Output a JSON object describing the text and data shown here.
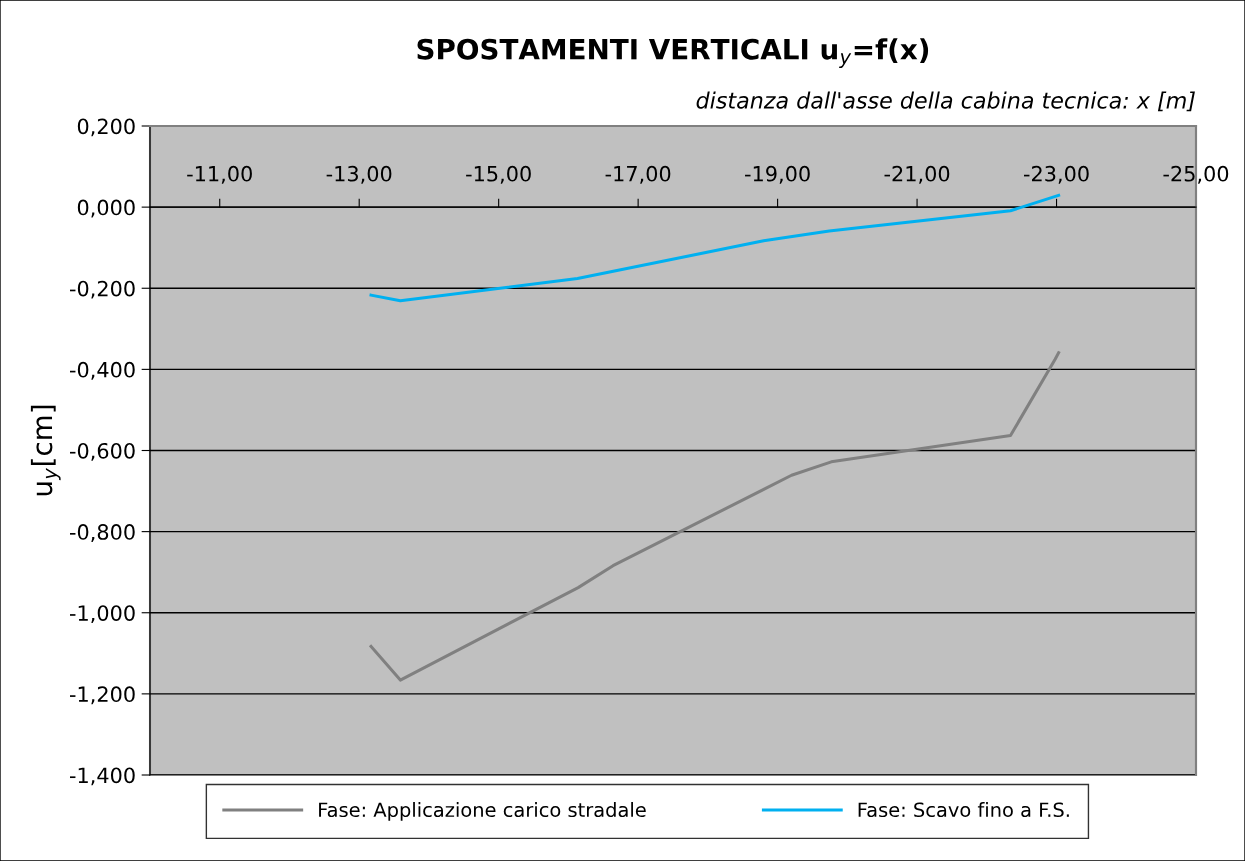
{
  "chart_data": {
    "type": "line",
    "title": "SPOSTAMENTI VERTICALI u$_{y}$=f(x)",
    "xlabel": "distanza dall'asse della cabina tecnica: x [m]",
    "ylabel": "u$_{y}$[cm]",
    "xlim": [
      -10,
      -25
    ],
    "xticks": [
      {
        "value": -11,
        "label": "-11,00"
      },
      {
        "value": -13,
        "label": "-13,00"
      },
      {
        "value": -15,
        "label": "-15,00"
      },
      {
        "value": -17,
        "label": "-17,00"
      },
      {
        "value": -19,
        "label": "-19,00"
      },
      {
        "value": -21,
        "label": "-21,00"
      },
      {
        "value": -23,
        "label": "-23,00"
      },
      {
        "value": -25,
        "label": "-25,00"
      }
    ],
    "ylim": [
      -1.4,
      0.2
    ],
    "yticks": [
      {
        "value": -1.4,
        "label": "-1,400"
      },
      {
        "value": -1.2,
        "label": "-1,200"
      },
      {
        "value": -1.0,
        "label": "-1,000"
      },
      {
        "value": -0.8,
        "label": "-0,800"
      },
      {
        "value": -0.6,
        "label": "-0,600"
      },
      {
        "value": -0.4,
        "label": "-0,400"
      },
      {
        "value": -0.2,
        "label": "-0,200"
      },
      {
        "value": 0,
        "label": "0,000"
      },
      {
        "value": 0.2,
        "label": "0,200"
      }
    ],
    "grid": "y",
    "legend": "bottom",
    "marker": "none",
    "line_style": "solid",
    "series": [
      {
        "name": "Fase: Applicazione carico stradale",
        "color": "#808080",
        "x": [
          -13.17,
          -13.59,
          -16.14,
          -16.64,
          -19.2,
          -19.77,
          -22.34,
          -22.98,
          -23.03
        ],
        "values": [
          -1.083,
          -1.166,
          -0.938,
          -0.884,
          -0.661,
          -0.628,
          -0.563,
          -0.375,
          -0.359
        ]
      },
      {
        "name": "Fase: Scavo fino a F.S.",
        "color": "#00b0f0",
        "x": [
          -13.17,
          -13.59,
          -16.13,
          -18.8,
          -19.74,
          -22.34,
          -23.03
        ],
        "values": [
          -0.217,
          -0.231,
          -0.176,
          -0.083,
          -0.059,
          -0.009,
          0.029
        ]
      }
    ]
  }
}
